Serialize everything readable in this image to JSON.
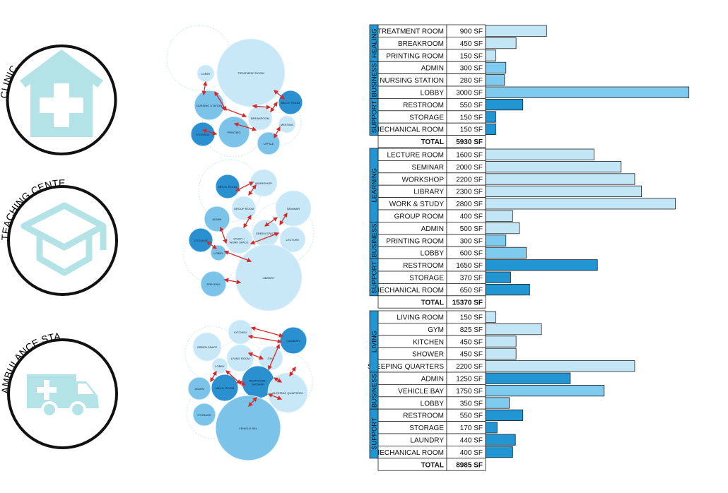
{
  "colors": {
    "icon": "#b3e3e6",
    "ring": "#111111",
    "cat_blue": "#2196d3",
    "bar_light": "#c3e6f7",
    "bar_mid": "#7fcbef",
    "bar_dark": "#2196d3",
    "bubble_light": "#c8e8f8",
    "bubble_mid": "#7cc3ea",
    "bubble_dark": "#2a90d0",
    "arrow": "#d42a2a"
  },
  "sections": [
    {
      "title": "CLINIC",
      "icon": "house-cross-icon",
      "total_label": "TOTAL",
      "total": "5930 SF",
      "groups": [
        {
          "name": "HEALING",
          "rows": [
            {
              "room": "TREATMENT ROOM",
              "area": "900 SF",
              "value": 900,
              "tone": "light"
            },
            {
              "room": "BREAKROOM",
              "area": "450 SF",
              "value": 450,
              "tone": "light"
            },
            {
              "room": "PRINTING ROOM",
              "area": "150 SF",
              "value": 150,
              "tone": "light"
            }
          ]
        },
        {
          "name": "BUSINESS",
          "rows": [
            {
              "room": "ADMIN",
              "area": "300 SF",
              "value": 300,
              "tone": "mid"
            },
            {
              "room": "NURSING STATION",
              "area": "280 SF",
              "value": 280,
              "tone": "mid"
            },
            {
              "room": "LOBBY",
              "area": "3000 SF",
              "value": 3000,
              "tone": "mid"
            }
          ]
        },
        {
          "name": "SUPPORT",
          "rows": [
            {
              "room": "RESTROOM",
              "area": "550 SF",
              "value": 550,
              "tone": "dark"
            },
            {
              "room": "STORAGE",
              "area": "150 SF",
              "value": 150,
              "tone": "dark"
            },
            {
              "room": "MECHANICAL ROOM",
              "area": "150 SF",
              "value": 150,
              "tone": "dark"
            }
          ]
        }
      ],
      "bubbles": [
        {
          "label": "LOBBY",
          "tone": "light"
        },
        {
          "label": "TREATMENT ROOM",
          "tone": "light"
        },
        {
          "label": "NURSING STATION",
          "tone": "mid"
        },
        {
          "label": "MECH. ROOM",
          "tone": "dark"
        },
        {
          "label": "BREAKROOM",
          "tone": "light"
        },
        {
          "label": "MEETING",
          "tone": "light"
        },
        {
          "label": "STORAGE",
          "tone": "dark"
        },
        {
          "label": "PRINTING",
          "tone": "mid"
        },
        {
          "label": "OFFICE",
          "tone": "mid"
        }
      ]
    },
    {
      "title": "TEACHING CENTER",
      "icon": "graduation-cap-icon",
      "total_label": "TOTAL",
      "total": "15370 SF",
      "groups": [
        {
          "name": "LEARNING",
          "rows": [
            {
              "room": "LECTURE ROOM",
              "area": "1600 SF",
              "value": 1600,
              "tone": "light"
            },
            {
              "room": "SEMINAR",
              "area": "2000 SF",
              "value": 2000,
              "tone": "light"
            },
            {
              "room": "WORKSHOP",
              "area": "2200 SF",
              "value": 2200,
              "tone": "light"
            },
            {
              "room": "LIBRARY",
              "area": "2300 SF",
              "value": 2300,
              "tone": "light"
            },
            {
              "room": "WORK & STUDY",
              "area": "2800 SF",
              "value": 2800,
              "tone": "light"
            },
            {
              "room": "GROUP ROOM",
              "area": "400 SF",
              "value": 400,
              "tone": "light"
            }
          ]
        },
        {
          "name": "BUSINESS",
          "rows": [
            {
              "room": "ADMIN",
              "area": "500 SF",
              "value": 500,
              "tone": "light"
            },
            {
              "room": "PRINTING ROOM",
              "area": "300 SF",
              "value": 300,
              "tone": "mid"
            },
            {
              "room": "LOBBY",
              "area": "600 SF",
              "value": 600,
              "tone": "mid"
            }
          ]
        },
        {
          "name": "SUPPORT",
          "rows": [
            {
              "room": "RESTROOM",
              "area": "1650 SF",
              "value": 1650,
              "tone": "dark"
            },
            {
              "room": "STORAGE",
              "area": "370 SF",
              "value": 370,
              "tone": "dark"
            },
            {
              "room": "MECHANICAL ROOM",
              "area": "650 SF",
              "value": 650,
              "tone": "dark"
            }
          ]
        }
      ],
      "bubbles": [
        {
          "label": "MECH. ROOM",
          "tone": "dark"
        },
        {
          "label": "WORKSHOP",
          "tone": "light"
        },
        {
          "label": "GROUP ROOM",
          "tone": "light"
        },
        {
          "label": "SEMINAR",
          "tone": "light"
        },
        {
          "label": "ADMIN",
          "tone": "mid"
        },
        {
          "label": "GREEN SPACE",
          "tone": "light"
        },
        {
          "label": "STORAGE",
          "tone": "dark"
        },
        {
          "label": "STUDY / WORK SPACE",
          "tone": "light"
        },
        {
          "label": "LECTURE",
          "tone": "light"
        },
        {
          "label": "LOBBY",
          "tone": "mid"
        },
        {
          "label": "PRINTING",
          "tone": "mid"
        },
        {
          "label": "LIBRARY",
          "tone": "light"
        }
      ]
    },
    {
      "title": "AMBULANCE STATION",
      "icon": "ambulance-icon",
      "total_label": "TOTAL",
      "total": "8985 SF",
      "groups": [
        {
          "name": "LIVING",
          "rows": [
            {
              "room": "LIVING ROOM",
              "area": "150 SF",
              "value": 150,
              "tone": "light"
            },
            {
              "room": "GYM",
              "area": "825 SF",
              "value": 825,
              "tone": "light"
            },
            {
              "room": "KITCHEN",
              "area": "450 SF",
              "value": 450,
              "tone": "light"
            },
            {
              "room": "SHOWER",
              "area": "450 SF",
              "value": 450,
              "tone": "light"
            },
            {
              "room": "SLEEPING QUARTERS",
              "area": "2200 SF",
              "value": 2200,
              "tone": "light"
            }
          ]
        },
        {
          "name": "BUSINESS",
          "rows": [
            {
              "room": "ADMIN",
              "area": "1250 SF",
              "value": 1250,
              "tone": "dark"
            },
            {
              "room": "VEHICLE BAY",
              "area": "1750 SF",
              "value": 1750,
              "tone": "mid"
            },
            {
              "room": "LOBBY",
              "area": "350 SF",
              "value": 350,
              "tone": "mid"
            }
          ]
        },
        {
          "name": "SUPPORT",
          "rows": [
            {
              "room": "RESTROOM",
              "area": "550 SF",
              "value": 550,
              "tone": "dark"
            },
            {
              "room": "STORAGE",
              "area": "170 SF",
              "value": 170,
              "tone": "dark"
            },
            {
              "room": "LAUNDRY",
              "area": "440 SF",
              "value": 440,
              "tone": "dark"
            },
            {
              "room": "MECHANICAL ROOM",
              "area": "400 SF",
              "value": 400,
              "tone": "dark"
            }
          ]
        }
      ],
      "bubbles": [
        {
          "label": "KITCHEN",
          "tone": "light"
        },
        {
          "label": "LAUNDRY",
          "tone": "dark"
        },
        {
          "label": "GREEN SPACE",
          "tone": "light"
        },
        {
          "label": "LIVING ROOM",
          "tone": "light"
        },
        {
          "label": "GYM",
          "tone": "light"
        },
        {
          "label": "LOBBY",
          "tone": "light"
        },
        {
          "label": "RESTROOM / SHOWER",
          "tone": "dark"
        },
        {
          "label": "ADMIN",
          "tone": "mid"
        },
        {
          "label": "MECH. ROOM",
          "tone": "dark"
        },
        {
          "label": "SLEEPING QUARTERS",
          "tone": "light"
        },
        {
          "label": "STORAGE",
          "tone": "mid"
        },
        {
          "label": "VEHICLE BAY",
          "tone": "mid"
        }
      ]
    }
  ]
}
